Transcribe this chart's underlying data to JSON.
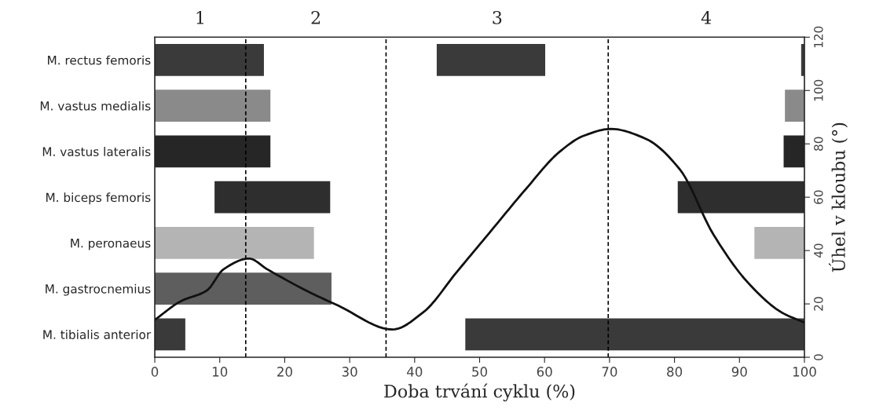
{
  "chart_data": [
    {
      "type": "bar",
      "orientation": "horizontal",
      "xlabel": "Doba trvání cyklu (%)",
      "categories": [
        "M. rectus femoris",
        "M. vastus medialis",
        "M. vastus lateralis",
        "M. biceps femoris",
        "M. peronaeus",
        "M. gastrocnemius",
        "M. tibialis anterior"
      ],
      "series": [
        {
          "colors": [
            "#3a3a3a",
            "#8a8a8a",
            "#262626",
            "#2e2e2e",
            "#b4b4b4",
            "#5e5e5e",
            "#3a3a3a"
          ],
          "base": [
            0,
            0,
            0,
            9.2,
            0,
            0,
            0
          ],
          "values": [
            16.8,
            17.8,
            17.8,
            17.8,
            24.5,
            27.2,
            4.7
          ]
        },
        {
          "colors": [
            "#3a3a3a",
            "#8a8a8a",
            "#262626",
            "#2e2e2e",
            "#b4b4b4",
            "#5e5e5e",
            "#3a3a3a"
          ],
          "base": [
            43.4,
            97,
            96.8,
            80.5,
            92.3,
            null,
            47.8
          ],
          "values": [
            16.7,
            3,
            3.2,
            19.5,
            7.7,
            null,
            52.2
          ]
        },
        {
          "colors": [
            "#3a3a3a",
            "#8a8a8a",
            "#262626",
            "#2e2e2e",
            "#b4b4b4",
            "#5e5e5e",
            "#3a3a3a"
          ],
          "base": [
            99.5,
            null,
            null,
            null,
            null,
            null,
            null
          ],
          "values": [
            0.5,
            null,
            null,
            null,
            null,
            null,
            null
          ]
        }
      ],
      "xlim": [
        0,
        100
      ],
      "xticks": [
        0,
        10,
        20,
        30,
        40,
        50,
        60,
        70,
        80,
        90,
        100
      ],
      "ref_lines": [
        {
          "axis": "x",
          "value": 14,
          "color": "#000000",
          "line_style": "dashed"
        },
        {
          "axis": "x",
          "value": 35.6,
          "color": "#000000",
          "line_style": "dashed"
        },
        {
          "axis": "x",
          "value": 69.8,
          "color": "#000000",
          "line_style": "dashed"
        }
      ],
      "annotations": [
        "1",
        "2",
        "3",
        "4"
      ],
      "grid": false,
      "legend": false
    },
    {
      "type": "line",
      "ylabel": "Úhel v kloubu (°)",
      "x": [
        0,
        4,
        8,
        10.6,
        14.5,
        17.3,
        23.3,
        28.2,
        36.6,
        41.3,
        46.5,
        51.8,
        57.1,
        62.3,
        66,
        70.2,
        75.5,
        80.8,
        86,
        91.3,
        96.5,
        100
      ],
      "series": [
        {
          "color": "#111111",
          "values": [
            14,
            21,
            25,
            33,
            37,
            33,
            25,
            19.4,
            10.4,
            16.8,
            32,
            47.5,
            63,
            77,
            83,
            85.6,
            82,
            70.5,
            46,
            28,
            16.8,
            13
          ]
        }
      ],
      "xlim": [
        0,
        100
      ],
      "ylim": [
        0,
        120
      ],
      "yticks": [
        0,
        20,
        40,
        60,
        80,
        100,
        120
      ],
      "tick_labels": "y",
      "grid": false,
      "legend": false
    }
  ]
}
